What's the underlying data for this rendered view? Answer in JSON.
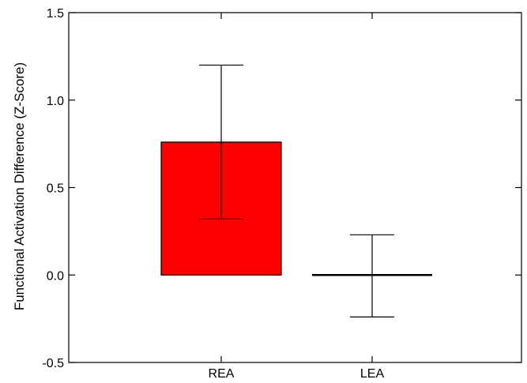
{
  "chart_data": {
    "type": "bar",
    "title": "",
    "xlabel": "",
    "ylabel": "Functional Activation Difference (Z-Score)",
    "categories": [
      "REA",
      "LEA"
    ],
    "values": [
      0.76,
      0.0
    ],
    "error_bars": {
      "lower": [
        0.32,
        -0.24
      ],
      "upper": [
        1.2,
        0.23
      ]
    },
    "ylim": [
      -0.5,
      1.5
    ],
    "yticks": [
      -0.5,
      0.0,
      0.5,
      1.0,
      1.5
    ],
    "ytick_labels": [
      "-0.5",
      "0.0",
      "0.5",
      "1.0",
      "1.5"
    ],
    "bar_colors": [
      "#ff0000",
      "#ffffff"
    ],
    "grid": false,
    "legend": "none"
  }
}
